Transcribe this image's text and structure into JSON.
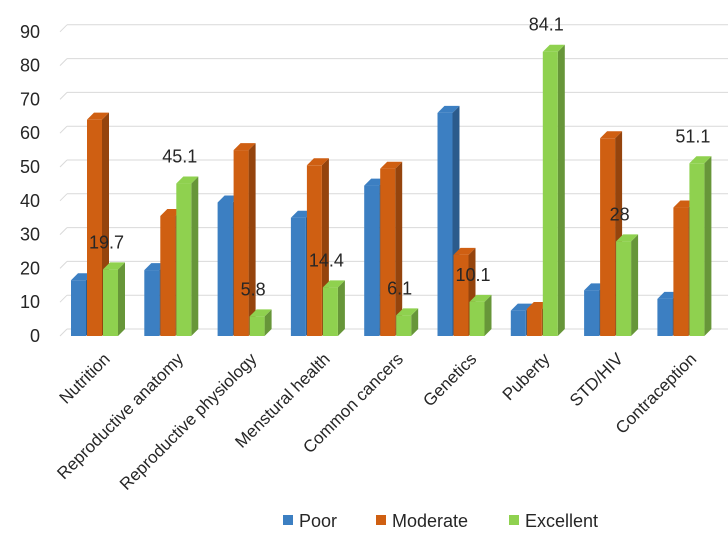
{
  "chart_data": {
    "type": "bar",
    "categories": [
      "Nutrition",
      "Reproductive anatomy",
      "Reproductive physiology",
      "Menstural health",
      "Common cancers",
      "Genetics",
      "Puberty",
      "STD/HIV",
      "Contraception"
    ],
    "series": [
      {
        "name": "Poor",
        "color": "#3c7fc2",
        "values": [
          16.5,
          19.5,
          39.5,
          35.0,
          44.5,
          66.0,
          7.5,
          13.5,
          11.0
        ]
      },
      {
        "name": "Moderate",
        "color": "#cf5f12",
        "values": [
          64.0,
          35.5,
          55.0,
          50.5,
          49.5,
          24.0,
          8.0,
          58.5,
          38.0
        ]
      },
      {
        "name": "Excellent",
        "color": "#8fd14f",
        "values": [
          19.7,
          45.1,
          5.8,
          14.4,
          6.1,
          10.1,
          84.1,
          28,
          51.1
        ]
      }
    ],
    "data_labels": {
      "series": "Excellent",
      "values": [
        "19.7",
        "45.1",
        "5.8",
        "14.4",
        "6.1",
        "10.1",
        "84.1",
        "28",
        "51.1"
      ]
    },
    "y_ticks": [
      "0",
      "10",
      "20",
      "30",
      "40",
      "50",
      "60",
      "70",
      "80",
      "90"
    ],
    "ylim": [
      0,
      90
    ],
    "title": "",
    "xlabel": "",
    "ylabel": "",
    "grid": true,
    "legend": {
      "position": "bottom-right",
      "entries": [
        "Poor",
        "Moderate",
        "Excellent"
      ]
    }
  }
}
